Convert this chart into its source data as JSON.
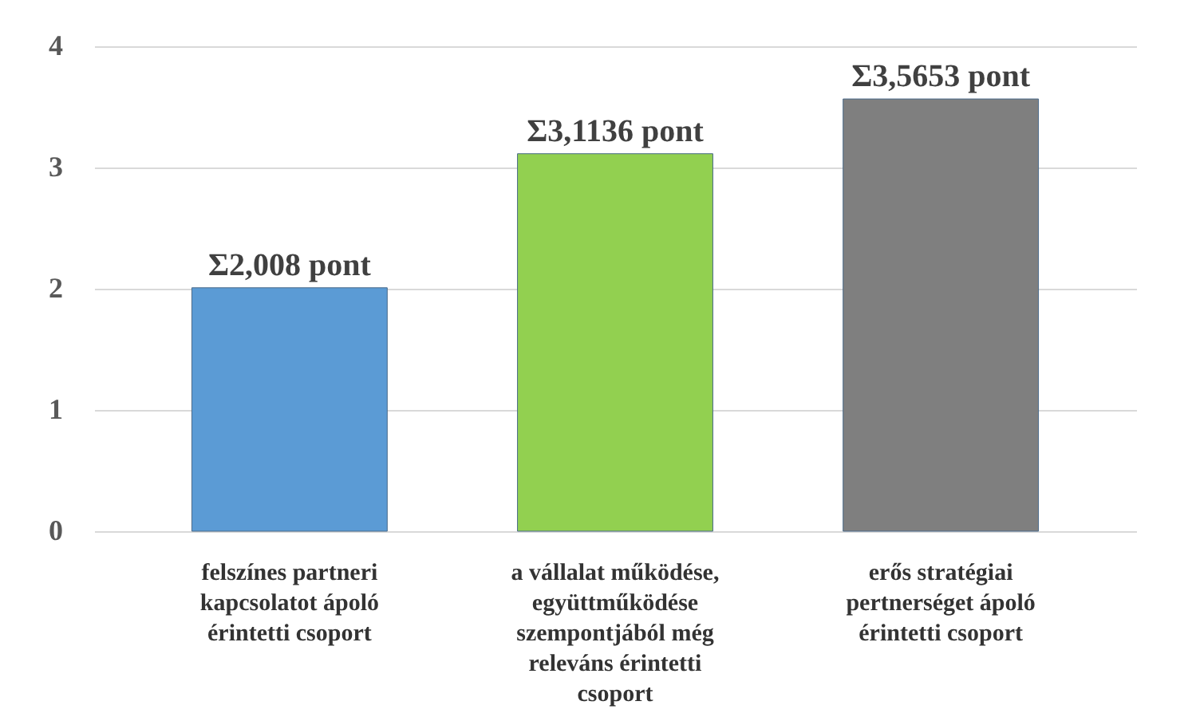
{
  "chart_data": {
    "type": "bar",
    "categories": [
      "felszínes partneri kapcsolatot ápoló érintetti csoport",
      "a vállalat működése, együttműködése szempontjából még releváns érintetti csoport",
      "erős stratégiai pertnerséget ápoló érintetti csoport"
    ],
    "values": [
      2.008,
      3.1136,
      3.5653
    ],
    "colors": [
      "#5b9bd5",
      "#92d050",
      "#7f7f7f"
    ],
    "value_labels": [
      "Σ2,008 pont",
      "Σ3,1136 pont",
      "Σ3,5653 pont"
    ],
    "ylim": [
      0,
      4
    ],
    "yticks": [
      0,
      1,
      2,
      3,
      4
    ],
    "grid": "y"
  }
}
